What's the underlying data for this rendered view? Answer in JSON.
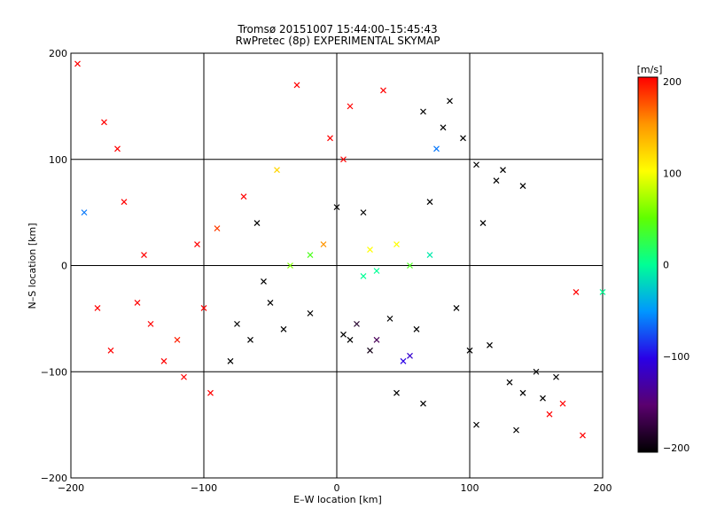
{
  "chart_data": {
    "type": "scatter",
    "title": "Tromsø 20151007 15:44:00–15:45:43",
    "subtitle": "RwPretec (8p) EXPERIMENTAL SKYMAP",
    "xlabel": "E–W location [km]",
    "ylabel": "N–S location [km]",
    "xlim": [
      -200,
      200
    ],
    "ylim": [
      -200,
      200
    ],
    "x_ticks": [
      "−200",
      "−100",
      "0",
      "100",
      "200"
    ],
    "y_ticks": [
      "−200",
      "−100",
      "0",
      "100",
      "200"
    ],
    "grid": true,
    "colorbar": {
      "label": "[m/s]",
      "range": [
        -200,
        200
      ],
      "ticks": [
        "200",
        "100",
        "0",
        "−100",
        "−200"
      ],
      "colormap": [
        "#000000",
        "#5a006e",
        "#2a00e6",
        "#0096ff",
        "#00ff96",
        "#60ff00",
        "#ffff00",
        "#ff9600",
        "#ff0000"
      ]
    },
    "series": [
      {
        "marker": "x",
        "points": [
          [
            -195,
            190,
            200
          ],
          [
            -175,
            135,
            200
          ],
          [
            -165,
            110,
            200
          ],
          [
            -160,
            60,
            200
          ],
          [
            -150,
            -35,
            200
          ],
          [
            -140,
            -55,
            200
          ],
          [
            -120,
            -70,
            190
          ],
          [
            -100,
            -40,
            200
          ],
          [
            -90,
            35,
            180
          ],
          [
            -70,
            65,
            200
          ],
          [
            -55,
            -15,
            -200
          ],
          [
            -40,
            -60,
            -200
          ],
          [
            -20,
            -45,
            -200
          ],
          [
            -10,
            20,
            150
          ],
          [
            0,
            55,
            -200
          ],
          [
            5,
            -65,
            -200
          ],
          [
            10,
            -70,
            -200
          ],
          [
            15,
            -55,
            -180
          ],
          [
            20,
            50,
            -200
          ],
          [
            25,
            -80,
            -190
          ],
          [
            30,
            -70,
            -160
          ],
          [
            40,
            -50,
            -200
          ],
          [
            50,
            -90,
            -100
          ],
          [
            55,
            -85,
            -110
          ],
          [
            60,
            -60,
            -200
          ],
          [
            70,
            60,
            -200
          ],
          [
            75,
            110,
            -60
          ],
          [
            80,
            130,
            -200
          ],
          [
            90,
            -40,
            -200
          ],
          [
            100,
            -80,
            -200
          ],
          [
            110,
            40,
            -200
          ],
          [
            115,
            -75,
            -200
          ],
          [
            125,
            90,
            -200
          ],
          [
            130,
            -110,
            -200
          ],
          [
            140,
            -120,
            -200
          ],
          [
            150,
            -100,
            -200
          ],
          [
            160,
            -140,
            200
          ],
          [
            170,
            -130,
            200
          ],
          [
            180,
            -25,
            200
          ],
          [
            200,
            -25,
            0
          ],
          [
            -170,
            -80,
            200
          ],
          [
            -130,
            -90,
            200
          ],
          [
            -115,
            -105,
            200
          ],
          [
            -95,
            -120,
            200
          ],
          [
            -30,
            170,
            200
          ],
          [
            -5,
            120,
            200
          ],
          [
            5,
            100,
            200
          ],
          [
            10,
            150,
            200
          ],
          [
            35,
            165,
            200
          ],
          [
            65,
            145,
            -200
          ],
          [
            85,
            155,
            -200
          ],
          [
            95,
            120,
            -200
          ],
          [
            105,
            95,
            -200
          ],
          [
            120,
            80,
            -200
          ],
          [
            140,
            75,
            -200
          ],
          [
            -60,
            40,
            -200
          ],
          [
            -75,
            -55,
            -200
          ],
          [
            -65,
            -70,
            -200
          ],
          [
            -50,
            -35,
            -200
          ],
          [
            -80,
            -90,
            -200
          ],
          [
            45,
            -120,
            -200
          ],
          [
            65,
            -130,
            -200
          ],
          [
            105,
            -150,
            -200
          ],
          [
            135,
            -155,
            -200
          ],
          [
            155,
            -125,
            -200
          ],
          [
            165,
            -105,
            -200
          ],
          [
            185,
            -160,
            200
          ],
          [
            -180,
            -40,
            200
          ],
          [
            -190,
            50,
            -60
          ],
          [
            -145,
            10,
            200
          ],
          [
            -105,
            20,
            200
          ],
          [
            -45,
            90,
            120
          ],
          [
            25,
            15,
            100
          ],
          [
            45,
            20,
            100
          ],
          [
            30,
            -5,
            0
          ],
          [
            55,
            0,
            40
          ],
          [
            70,
            10,
            -10
          ],
          [
            20,
            -10,
            0
          ],
          [
            -20,
            10,
            40
          ],
          [
            -35,
            0,
            60
          ]
        ]
      }
    ]
  }
}
